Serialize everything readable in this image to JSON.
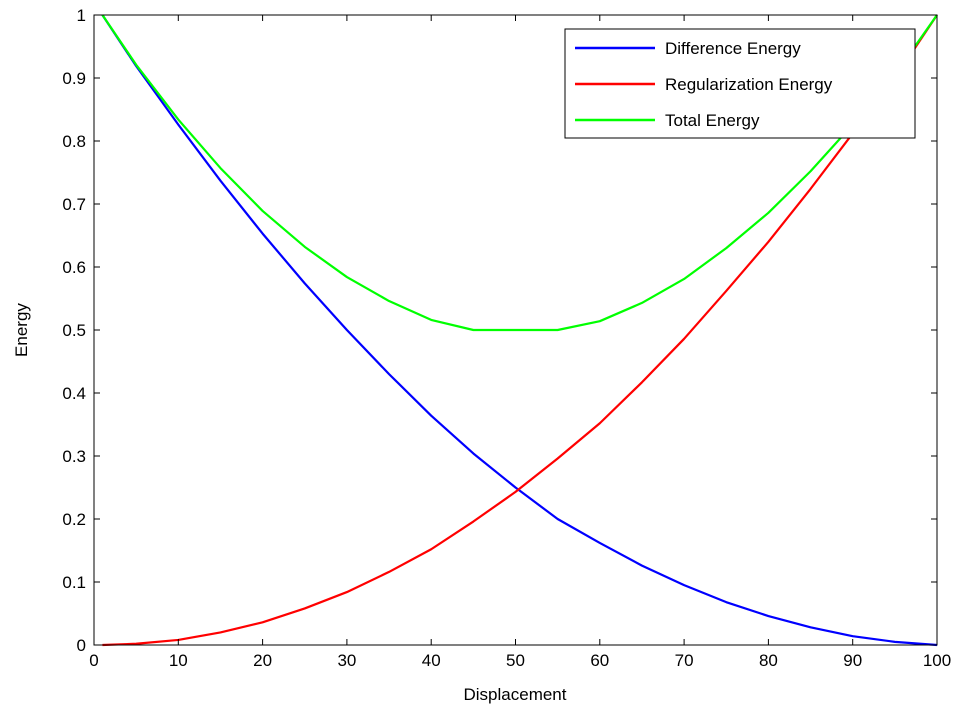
{
  "chart_data": {
    "type": "line",
    "title": "",
    "xlabel": "Displacement",
    "ylabel": "Energy",
    "xlim": [
      0,
      100
    ],
    "ylim": [
      0,
      1
    ],
    "xticks": [
      0,
      10,
      20,
      30,
      40,
      50,
      60,
      70,
      80,
      90,
      100
    ],
    "yticks": [
      0,
      0.1,
      0.2,
      0.3,
      0.4,
      0.5,
      0.6,
      0.7,
      0.8,
      0.9,
      1
    ],
    "xtick_labels": [
      "0",
      "10",
      "20",
      "30",
      "40",
      "50",
      "60",
      "70",
      "80",
      "90",
      "100"
    ],
    "ytick_labels": [
      "0",
      "0.1",
      "0.2",
      "0.3",
      "0.4",
      "0.5",
      "0.6",
      "0.7",
      "0.8",
      "0.9",
      "1"
    ],
    "grid": false,
    "legend_position": "top-right",
    "x": [
      1,
      5,
      10,
      15,
      20,
      25,
      30,
      35,
      40,
      45,
      50,
      55,
      60,
      65,
      70,
      75,
      80,
      85,
      90,
      95,
      100
    ],
    "series": [
      {
        "name": "Difference Energy",
        "color": "#0000ff",
        "values": [
          1.0,
          0.919,
          0.826,
          0.737,
          0.653,
          0.574,
          0.5,
          0.43,
          0.364,
          0.304,
          0.25,
          0.2,
          0.162,
          0.126,
          0.095,
          0.068,
          0.046,
          0.028,
          0.014,
          0.005,
          0.0
        ]
      },
      {
        "name": "Regularization Energy",
        "color": "#ff0000",
        "values": [
          0.0,
          0.002,
          0.008,
          0.02,
          0.036,
          0.058,
          0.084,
          0.116,
          0.152,
          0.196,
          0.243,
          0.296,
          0.352,
          0.417,
          0.486,
          0.562,
          0.64,
          0.724,
          0.812,
          0.9,
          1.0
        ]
      },
      {
        "name": "Total Energy",
        "color": "#00ff00",
        "values": [
          1.0,
          0.921,
          0.834,
          0.757,
          0.689,
          0.632,
          0.584,
          0.546,
          0.516,
          0.5,
          0.5,
          0.5,
          0.514,
          0.543,
          0.581,
          0.63,
          0.686,
          0.752,
          0.826,
          0.905,
          1.0
        ]
      }
    ]
  }
}
